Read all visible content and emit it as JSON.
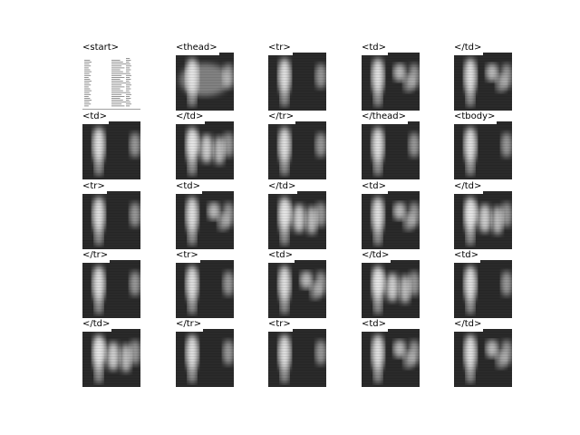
{
  "figure": {
    "panels": [
      {
        "tag": "<start>",
        "kind": "document"
      },
      {
        "tag": "<thead>",
        "kind": "attention",
        "variant": 1
      },
      {
        "tag": "<tr>",
        "kind": "attention",
        "variant": 0
      },
      {
        "tag": "<td>",
        "kind": "attention",
        "variant": 2
      },
      {
        "tag": "</td>",
        "kind": "attention",
        "variant": 2
      },
      {
        "tag": "<td>",
        "kind": "attention",
        "variant": 0
      },
      {
        "tag": "</td>",
        "kind": "attention",
        "variant": 3
      },
      {
        "tag": "</tr>",
        "kind": "attention",
        "variant": 0
      },
      {
        "tag": "</thead>",
        "kind": "attention",
        "variant": 0
      },
      {
        "tag": "<tbody>",
        "kind": "attention",
        "variant": 0
      },
      {
        "tag": "<tr>",
        "kind": "attention",
        "variant": 0
      },
      {
        "tag": "<td>",
        "kind": "attention",
        "variant": 2
      },
      {
        "tag": "</td>",
        "kind": "attention",
        "variant": 3
      },
      {
        "tag": "<td>",
        "kind": "attention",
        "variant": 2
      },
      {
        "tag": "</td>",
        "kind": "attention",
        "variant": 3
      },
      {
        "tag": "</tr>",
        "kind": "attention",
        "variant": 0
      },
      {
        "tag": "<tr>",
        "kind": "attention",
        "variant": 0
      },
      {
        "tag": "<td>",
        "kind": "attention",
        "variant": 2
      },
      {
        "tag": "</td>",
        "kind": "attention",
        "variant": 3
      },
      {
        "tag": "<td>",
        "kind": "attention",
        "variant": 0
      },
      {
        "tag": "</td>",
        "kind": "attention",
        "variant": 3
      },
      {
        "tag": "</tr>",
        "kind": "attention",
        "variant": 0
      },
      {
        "tag": "<tr>",
        "kind": "attention",
        "variant": 0
      },
      {
        "tag": "<td>",
        "kind": "attention",
        "variant": 2
      },
      {
        "tag": "</td>",
        "kind": "attention",
        "variant": 2
      }
    ],
    "colors": {
      "background": "#ffffff",
      "heatmap_dark": "#2a2a2a",
      "heatmap_bright": "#e6e6e6"
    }
  }
}
